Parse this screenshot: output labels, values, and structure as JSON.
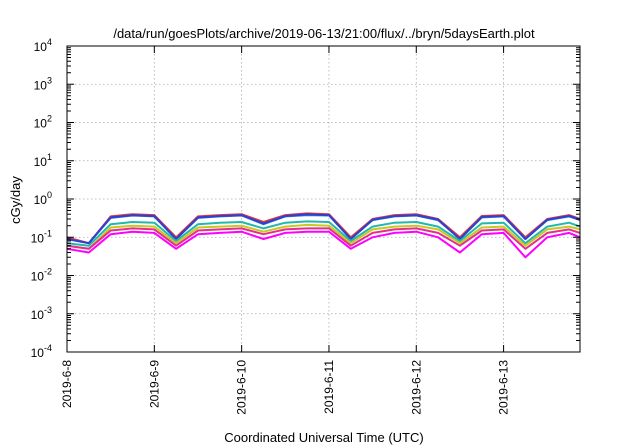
{
  "chart_data": {
    "type": "line",
    "title": "/data/run/goesPlots/archive/2019-06-13/21:00/flux/../bryn/5daysEarth.plot",
    "xlabel": "Coordinated Universal Time (UTC)",
    "ylabel": "cGy/day",
    "yscale": "log",
    "ylim": [
      0.0001,
      10000
    ],
    "xlim": [
      "2019-06-08",
      "2019-06-13T21:00"
    ],
    "grid": true,
    "legend": "none",
    "x_ticks": [
      "2019-6-8",
      "2019-6-9",
      "2019-6-10",
      "2019-6-11",
      "2019-6-12",
      "2019-6-13"
    ],
    "y_ticks": [
      {
        "value": 0.0001,
        "base": "10",
        "exp": "-4"
      },
      {
        "value": 0.001,
        "base": "10",
        "exp": "-3"
      },
      {
        "value": 0.01,
        "base": "10",
        "exp": "-2"
      },
      {
        "value": 0.1,
        "base": "10",
        "exp": "-1"
      },
      {
        "value": 1,
        "base": "10",
        "exp": "0"
      },
      {
        "value": 10,
        "base": "10",
        "exp": "1"
      },
      {
        "value": 100,
        "base": "10",
        "exp": "2"
      },
      {
        "value": 1000,
        "base": "10",
        "exp": "3"
      },
      {
        "value": 10000,
        "base": "10",
        "exp": "4"
      }
    ],
    "x": [
      "2019-06-08T00:00",
      "2019-06-08T06:00",
      "2019-06-08T12:00",
      "2019-06-08T18:00",
      "2019-06-09T00:00",
      "2019-06-09T06:00",
      "2019-06-09T12:00",
      "2019-06-09T18:00",
      "2019-06-10T00:00",
      "2019-06-10T06:00",
      "2019-06-10T12:00",
      "2019-06-10T18:00",
      "2019-06-11T00:00",
      "2019-06-11T06:00",
      "2019-06-11T12:00",
      "2019-06-11T18:00",
      "2019-06-12T00:00",
      "2019-06-12T06:00",
      "2019-06-12T12:00",
      "2019-06-12T18:00",
      "2019-06-13T00:00",
      "2019-06-13T06:00",
      "2019-06-13T12:00",
      "2019-06-13T18:00",
      "2019-06-13T21:00"
    ],
    "series": [
      {
        "color": "#e8363a",
        "values": [
          0.1,
          0.07,
          0.35,
          0.4,
          0.38,
          0.1,
          0.35,
          0.38,
          0.4,
          0.25,
          0.38,
          0.42,
          0.4,
          0.1,
          0.3,
          0.38,
          0.4,
          0.3,
          0.1,
          0.36,
          0.38,
          0.1,
          0.3,
          0.38,
          0.3
        ]
      },
      {
        "color": "#1e7fd4",
        "values": [
          0.09,
          0.07,
          0.32,
          0.37,
          0.35,
          0.09,
          0.32,
          0.35,
          0.37,
          0.22,
          0.35,
          0.38,
          0.37,
          0.09,
          0.28,
          0.35,
          0.37,
          0.28,
          0.09,
          0.33,
          0.35,
          0.09,
          0.28,
          0.35,
          0.28
        ]
      },
      {
        "color": "#2f3fcf",
        "values": [
          0.09,
          0.07,
          0.33,
          0.38,
          0.36,
          0.09,
          0.33,
          0.36,
          0.38,
          0.23,
          0.36,
          0.4,
          0.38,
          0.09,
          0.29,
          0.36,
          0.38,
          0.29,
          0.09,
          0.34,
          0.36,
          0.09,
          0.29,
          0.36,
          0.29
        ]
      },
      {
        "color": "#22b8b0",
        "values": [
          0.07,
          0.06,
          0.22,
          0.25,
          0.24,
          0.08,
          0.22,
          0.24,
          0.25,
          0.17,
          0.24,
          0.26,
          0.25,
          0.08,
          0.19,
          0.24,
          0.25,
          0.19,
          0.08,
          0.23,
          0.24,
          0.07,
          0.19,
          0.24,
          0.19
        ]
      },
      {
        "color": "#c8c820",
        "values": [
          0.06,
          0.05,
          0.18,
          0.2,
          0.19,
          0.07,
          0.18,
          0.19,
          0.2,
          0.14,
          0.19,
          0.21,
          0.2,
          0.07,
          0.16,
          0.19,
          0.2,
          0.16,
          0.07,
          0.18,
          0.19,
          0.06,
          0.16,
          0.19,
          0.16
        ]
      },
      {
        "color": "#e2308a",
        "values": [
          0.06,
          0.05,
          0.15,
          0.17,
          0.16,
          0.06,
          0.15,
          0.16,
          0.17,
          0.12,
          0.16,
          0.17,
          0.17,
          0.06,
          0.13,
          0.16,
          0.17,
          0.13,
          0.06,
          0.15,
          0.16,
          0.05,
          0.13,
          0.16,
          0.13
        ]
      },
      {
        "color": "#ff00ff",
        "values": [
          0.05,
          0.04,
          0.12,
          0.14,
          0.13,
          0.05,
          0.12,
          0.13,
          0.14,
          0.09,
          0.13,
          0.14,
          0.14,
          0.05,
          0.1,
          0.13,
          0.14,
          0.1,
          0.04,
          0.12,
          0.13,
          0.03,
          0.1,
          0.13,
          0.1
        ]
      }
    ]
  }
}
